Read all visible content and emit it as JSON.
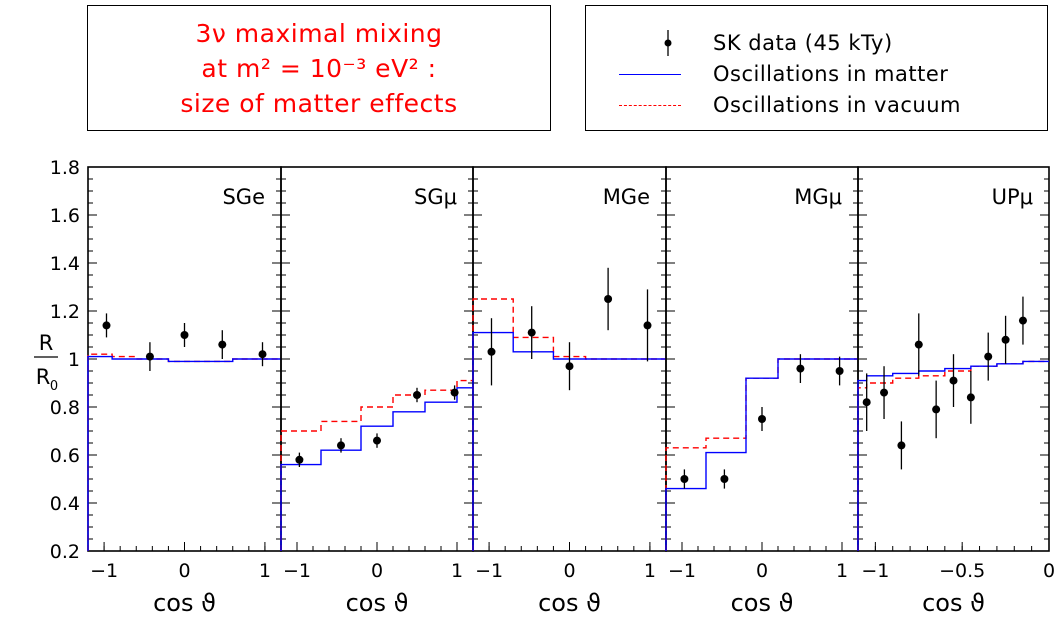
{
  "title_box": {
    "line1": "3ν maximal mixing",
    "line2": "at  m² = 10⁻³ eV² :",
    "line3": "size of matter effects"
  },
  "legend": {
    "data_label": "SK data  (45 kTy)",
    "matter_label": "Oscillations in matter",
    "vacuum_label": "Oscillations in vacuum"
  },
  "colors": {
    "matter": "#0000ff",
    "vacuum": "#ff0000",
    "data": "#000000",
    "title": "#ff0000"
  },
  "ylabel_num": "R",
  "ylabel_den": "R",
  "ylabel_den_sub": "0",
  "chart_data": {
    "type": "line",
    "ylim": [
      0.2,
      1.8
    ],
    "yticks": [
      "0.2",
      "0.4",
      "0.6",
      "0.8",
      "1",
      "1.2",
      "1.4",
      "1.6",
      "1.8"
    ],
    "ylabel": "R/R0",
    "panels": [
      {
        "label": "SGe",
        "xlabel": "cos ϑ",
        "xlim": [
          -1.2,
          1.2
        ],
        "xticks": [
          "-1",
          "0",
          "1"
        ],
        "matter": {
          "edges": [
            -1.2,
            -0.9,
            -0.6,
            -0.2,
            0.2,
            0.6,
            1.2
          ],
          "values": [
            1.01,
            1.0,
            1.0,
            0.99,
            0.99,
            1.0
          ]
        },
        "vacuum": {
          "edges": [
            -1.2,
            -0.9,
            -0.6,
            -0.2,
            0.2,
            0.6,
            1.2
          ],
          "values": [
            1.02,
            1.01,
            1.0,
            0.99,
            0.99,
            1.0
          ]
        },
        "data": [
          {
            "x": -0.97,
            "y": 1.14,
            "err": 0.05
          },
          {
            "x": -0.43,
            "y": 1.01,
            "err": 0.06
          },
          {
            "x": 0.0,
            "y": 1.1,
            "err": 0.05
          },
          {
            "x": 0.47,
            "y": 1.06,
            "err": 0.06
          },
          {
            "x": 0.97,
            "y": 1.02,
            "err": 0.05
          }
        ]
      },
      {
        "label": "SGμ",
        "xlabel": "cos ϑ",
        "xlim": [
          -1.2,
          1.2
        ],
        "xticks": [
          "-1",
          "0",
          "1"
        ],
        "matter": {
          "edges": [
            -1.2,
            -0.7,
            -0.2,
            0.2,
            0.6,
            1.0,
            1.2
          ],
          "values": [
            0.56,
            0.62,
            0.72,
            0.78,
            0.82,
            0.88
          ]
        },
        "vacuum": {
          "edges": [
            -1.2,
            -0.7,
            -0.2,
            0.2,
            0.6,
            1.0,
            1.2
          ],
          "values": [
            0.7,
            0.74,
            0.8,
            0.85,
            0.87,
            0.91
          ]
        },
        "data": [
          {
            "x": -0.97,
            "y": 0.58,
            "err": 0.03
          },
          {
            "x": -0.45,
            "y": 0.64,
            "err": 0.03
          },
          {
            "x": 0.0,
            "y": 0.66,
            "err": 0.03
          },
          {
            "x": 0.5,
            "y": 0.85,
            "err": 0.03
          },
          {
            "x": 0.97,
            "y": 0.86,
            "err": 0.03
          }
        ]
      },
      {
        "label": "MGe",
        "xlabel": "cos ϑ",
        "xlim": [
          -1.2,
          1.2
        ],
        "xticks": [
          "-1",
          "0",
          "1"
        ],
        "matter": {
          "edges": [
            -1.2,
            -0.7,
            -0.2,
            0.2,
            0.6,
            1.0,
            1.2
          ],
          "values": [
            1.11,
            1.03,
            1.0,
            1.0,
            1.0,
            1.0
          ]
        },
        "vacuum": {
          "edges": [
            -1.2,
            -0.7,
            -0.2,
            0.2,
            0.6,
            1.0,
            1.2
          ],
          "values": [
            1.25,
            1.09,
            1.01,
            1.0,
            1.0,
            1.0
          ]
        },
        "data": [
          {
            "x": -0.97,
            "y": 1.03,
            "err": 0.14
          },
          {
            "x": -0.47,
            "y": 1.11,
            "err": 0.11
          },
          {
            "x": 0.0,
            "y": 0.97,
            "err": 0.1
          },
          {
            "x": 0.48,
            "y": 1.25,
            "err": 0.13
          },
          {
            "x": 0.97,
            "y": 1.14,
            "err": 0.15
          }
        ]
      },
      {
        "label": "MGμ",
        "xlabel": "cos ϑ",
        "xlim": [
          -1.2,
          1.2
        ],
        "xticks": [
          "-1",
          "0",
          "1"
        ],
        "matter": {
          "edges": [
            -1.2,
            -0.7,
            -0.2,
            0.2,
            0.6,
            1.0,
            1.2
          ],
          "values": [
            0.46,
            0.61,
            0.92,
            1.0,
            1.0,
            1.0
          ]
        },
        "vacuum": {
          "edges": [
            -1.2,
            -0.7,
            -0.2,
            0.2,
            0.6,
            1.0,
            1.2
          ],
          "values": [
            0.63,
            0.67,
            0.92,
            1.0,
            1.0,
            1.0
          ]
        },
        "data": [
          {
            "x": -0.97,
            "y": 0.5,
            "err": 0.04
          },
          {
            "x": -0.47,
            "y": 0.5,
            "err": 0.04
          },
          {
            "x": 0.0,
            "y": 0.75,
            "err": 0.05
          },
          {
            "x": 0.48,
            "y": 0.96,
            "err": 0.06
          },
          {
            "x": 0.97,
            "y": 0.95,
            "err": 0.06
          }
        ]
      },
      {
        "label": "UPμ",
        "xlabel": "cos ϑ",
        "xlim": [
          -1.1,
          0.0
        ],
        "xticks": [
          "-1",
          "-0.5",
          "0"
        ],
        "matter": {
          "edges": [
            -1.1,
            -1.05,
            -0.9,
            -0.75,
            -0.6,
            -0.45,
            -0.3,
            -0.15,
            0.0
          ],
          "values": [
            0.91,
            0.93,
            0.94,
            0.95,
            0.96,
            0.97,
            0.98,
            0.99
          ]
        },
        "vacuum": {
          "edges": [
            -1.1,
            -1.05,
            -0.9,
            -0.75,
            -0.6,
            -0.45,
            -0.3,
            -0.15,
            0.0
          ],
          "values": [
            0.88,
            0.9,
            0.92,
            0.93,
            0.95,
            0.97,
            0.98,
            0.99
          ]
        },
        "data": [
          {
            "x": -1.05,
            "y": 0.82,
            "err": 0.12
          },
          {
            "x": -0.95,
            "y": 0.86,
            "err": 0.11
          },
          {
            "x": -0.85,
            "y": 0.64,
            "err": 0.1
          },
          {
            "x": -0.75,
            "y": 1.06,
            "err": 0.13
          },
          {
            "x": -0.65,
            "y": 0.79,
            "err": 0.12
          },
          {
            "x": -0.55,
            "y": 0.91,
            "err": 0.11
          },
          {
            "x": -0.45,
            "y": 0.84,
            "err": 0.11
          },
          {
            "x": -0.35,
            "y": 1.01,
            "err": 0.1
          },
          {
            "x": -0.25,
            "y": 1.08,
            "err": 0.1
          },
          {
            "x": -0.15,
            "y": 1.16,
            "err": 0.1
          }
        ]
      }
    ]
  }
}
